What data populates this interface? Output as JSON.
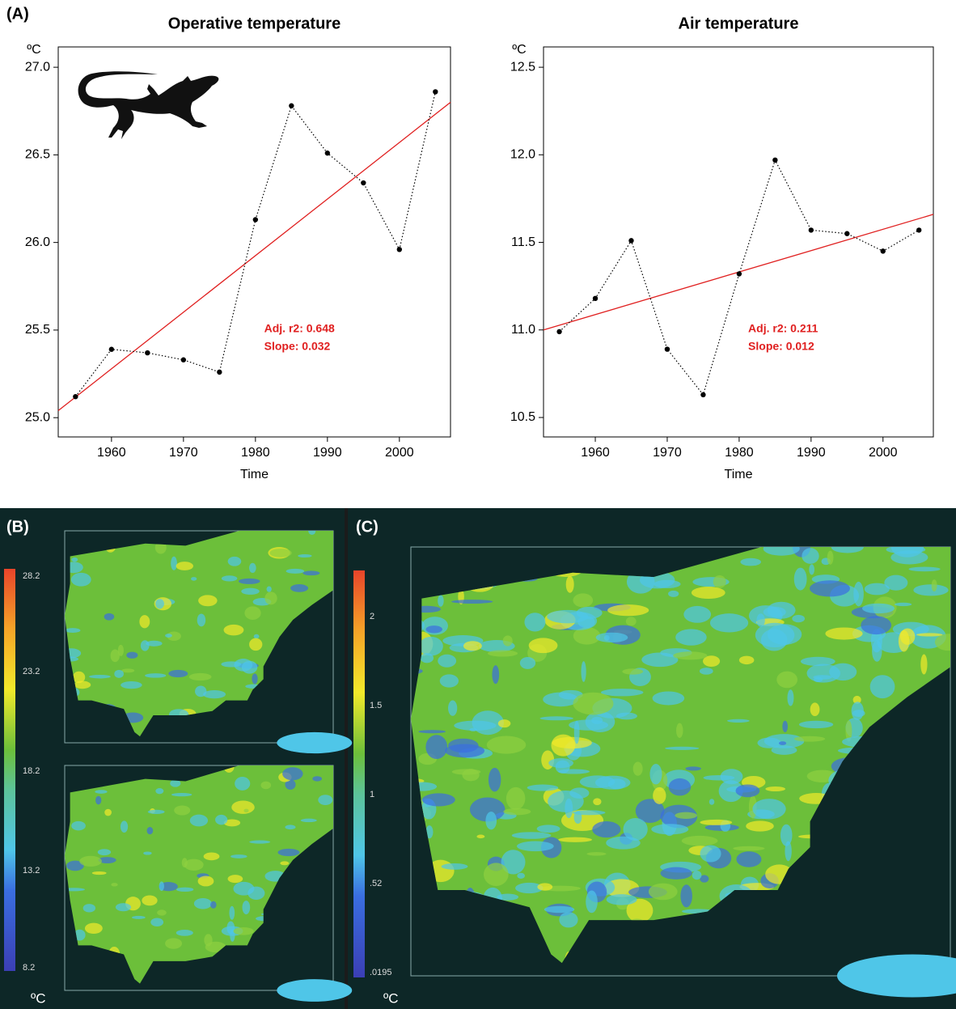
{
  "chart_data": [
    {
      "type": "line",
      "title": "Operative temperature",
      "xlabel": "Time",
      "ylabel": "ºC",
      "x": [
        1955,
        1960,
        1965,
        1970,
        1975,
        1980,
        1985,
        1990,
        1995,
        2000,
        2005
      ],
      "values": [
        25.12,
        25.39,
        25.37,
        25.33,
        25.26,
        26.13,
        26.78,
        26.51,
        26.34,
        25.96,
        26.86
      ],
      "color": "#000000",
      "trend": {
        "x": [
          1952.6,
          2007.1
        ],
        "values": [
          25.04,
          26.8
        ],
        "color": "#e02020"
      },
      "annotations": [
        "Adj. r2: 0.648",
        "Slope: 0.032"
      ],
      "xlim": [
        1952.6,
        2007.1
      ],
      "xticks": [
        1960,
        1970,
        1980,
        1990,
        2000
      ],
      "ylim": [
        24.89,
        27.116
      ],
      "yticks": [
        {
          "value": 25,
          "label": "25.0"
        },
        25.5,
        {
          "value": 26,
          "label": "26.0"
        },
        26.5,
        {
          "value": 27,
          "label": "27.0"
        }
      ]
    },
    {
      "type": "line",
      "title": "Air temperature",
      "xlabel": "Time",
      "ylabel": "ºC",
      "x": [
        1955,
        1960,
        1965,
        1970,
        1975,
        1980,
        1985,
        1990,
        1995,
        2000,
        2005
      ],
      "values": [
        10.99,
        11.18,
        11.51,
        10.89,
        10.63,
        11.32,
        11.97,
        11.57,
        11.55,
        11.45,
        11.57
      ],
      "color": "#000000",
      "trend": {
        "x": [
          1952.8,
          2007.0
        ],
        "values": [
          11.0,
          11.66
        ],
        "color": "#e02020"
      },
      "annotations": [
        "Adj. r2: 0.211",
        "Slope: 0.012"
      ],
      "xlim": [
        1952.8,
        2007.0
      ],
      "xticks": [
        1960,
        1970,
        1980,
        1990,
        2000
      ],
      "ylim": [
        10.389,
        12.616
      ],
      "yticks": [
        10.5,
        {
          "value": 11,
          "label": "11.0"
        },
        11.5,
        {
          "value": 12,
          "label": "12.0"
        },
        12.5
      ]
    }
  ],
  "panel_label": "(A)",
  "maps": {
    "B": {
      "label": "(B)",
      "colorbar_ticks": [
        "28.2",
        "23.2",
        "18.2",
        "13.2",
        "8.2"
      ],
      "unit": "ºC"
    },
    "C": {
      "label": "(C)",
      "colorbar_ticks": [
        "2",
        "1.5",
        "1",
        ".52",
        ".0195"
      ],
      "unit": "ºC"
    }
  }
}
